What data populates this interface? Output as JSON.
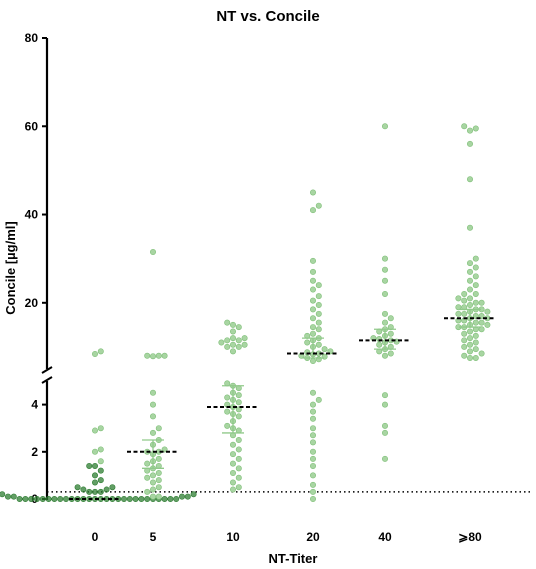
{
  "chart_data": {
    "type": "scatter",
    "title": "NT vs. Concile",
    "xlabel": "NT-Titer",
    "ylabel": "Concile [µg/ml]",
    "categories": [
      "0",
      "5",
      "10",
      "20",
      "40",
      "⩾80"
    ],
    "y_axis": {
      "broken": true,
      "lower_segment": {
        "range": [
          0,
          5
        ],
        "ticks": [
          "0",
          "2",
          "4"
        ]
      },
      "upper_segment": {
        "range": [
          5,
          80
        ],
        "ticks": [
          "20",
          "40",
          "60",
          "80"
        ]
      }
    },
    "threshold_line": {
      "y": 0.3,
      "style": "dotted"
    },
    "point_color": "#a8d5a2",
    "point_edge_color": "#7fbf78",
    "dense_point_color": "#2e7d32",
    "median_color": "#000000",
    "error_color": "#90c98a",
    "series": [
      {
        "category": "0",
        "median": 0,
        "iqr": [
          0,
          0
        ],
        "values": [
          9.0,
          8.4,
          3.0,
          2.9,
          2.1,
          2.0,
          1.6,
          1.4,
          1.4,
          1.2,
          1.0,
          0.8,
          0.7,
          0.5,
          0.5,
          0.4,
          0.4,
          0.3,
          0.3,
          0.3,
          0.2,
          0.2,
          0.2,
          0.1,
          0.1,
          0.1,
          0.1,
          0,
          0,
          0,
          0,
          0,
          0,
          0,
          0,
          0,
          0,
          0,
          0,
          0,
          0,
          0,
          0,
          0,
          0,
          0,
          0,
          0,
          0,
          0,
          0,
          0,
          0,
          0,
          0
        ]
      },
      {
        "category": "5",
        "median": 2.0,
        "iqr": [
          1.3,
          2.5
        ],
        "values": [
          31.5,
          8.0,
          8.0,
          8.0,
          7.9,
          4.5,
          4.0,
          3.5,
          3.0,
          2.8,
          2.5,
          2.3,
          2.1,
          2.0,
          2.0,
          1.9,
          1.7,
          1.6,
          1.5,
          1.4,
          1.3,
          1.2,
          1.1,
          1.0,
          0.9,
          0.8,
          0.7,
          0.5,
          0.4,
          0.3,
          0.1,
          0.1
        ]
      },
      {
        "category": "10",
        "median": 3.9,
        "iqr": [
          2.8,
          4.8
        ],
        "values": [
          15.5,
          15.0,
          14.5,
          13.5,
          12.0,
          12.0,
          11.5,
          11.5,
          11.0,
          10.5,
          10.5,
          10.0,
          10.0,
          9.0,
          4.9,
          4.8,
          4.7,
          4.5,
          4.4,
          4.3,
          4.2,
          4.1,
          4.0,
          3.9,
          3.8,
          3.7,
          3.6,
          3.5,
          3.3,
          3.1,
          3.0,
          2.9,
          2.7,
          2.5,
          2.3,
          2.1,
          1.9,
          1.7,
          1.5,
          1.3,
          1.1,
          0.9,
          0.7,
          0.5,
          0.4
        ]
      },
      {
        "category": "20",
        "median": 8.5,
        "iqr": [
          7.5,
          12.0
        ],
        "values": [
          45.0,
          42.0,
          41.0,
          29.5,
          27.0,
          25.0,
          24.0,
          23.0,
          21.5,
          20.5,
          19.5,
          18.5,
          17.5,
          16.5,
          15.5,
          14.5,
          14.0,
          13.0,
          12.5,
          12.0,
          11.5,
          11.0,
          10.5,
          10.0,
          9.5,
          9.0,
          8.8,
          8.5,
          8.3,
          8.0,
          7.8,
          7.5,
          7.2,
          6.8,
          4.5,
          4.2,
          4.0,
          3.7,
          3.4,
          3.0,
          2.7,
          2.4,
          2.0,
          1.7,
          1.4,
          1.0,
          0.6,
          0.3,
          0.0
        ]
      },
      {
        "category": "40",
        "median": 11.5,
        "iqr": [
          9.5,
          14.0
        ],
        "values": [
          60.0,
          30.0,
          27.5,
          25.0,
          22.0,
          17.5,
          16.5,
          15.5,
          14.5,
          14.0,
          13.5,
          13.0,
          12.5,
          12.0,
          11.8,
          11.5,
          11.2,
          11.0,
          10.5,
          10.0,
          9.5,
          9.0,
          8.5,
          8.0,
          4.4,
          4.0,
          3.1,
          2.8,
          1.7
        ]
      },
      {
        "category": "⩾80",
        "median": 16.5,
        "iqr": [
          14.5,
          18.5
        ],
        "values": [
          60.0,
          59.5,
          59.0,
          56.0,
          48.0,
          37.0,
          30.0,
          29.0,
          28.0,
          27.0,
          26.0,
          25.0,
          24.0,
          23.0,
          22.0,
          22.0,
          21.0,
          21.0,
          20.5,
          20.0,
          20.0,
          19.5,
          19.0,
          19.0,
          18.5,
          18.5,
          18.0,
          18.0,
          17.5,
          17.5,
          17.0,
          17.0,
          16.5,
          16.5,
          16.0,
          16.0,
          15.5,
          15.5,
          15.0,
          15.0,
          14.5,
          14.5,
          14.0,
          14.0,
          13.5,
          13.0,
          12.5,
          12.0,
          11.5,
          11.0,
          10.5,
          10.0,
          9.5,
          9.0,
          8.5,
          8.0,
          7.5,
          7.5
        ]
      }
    ]
  }
}
